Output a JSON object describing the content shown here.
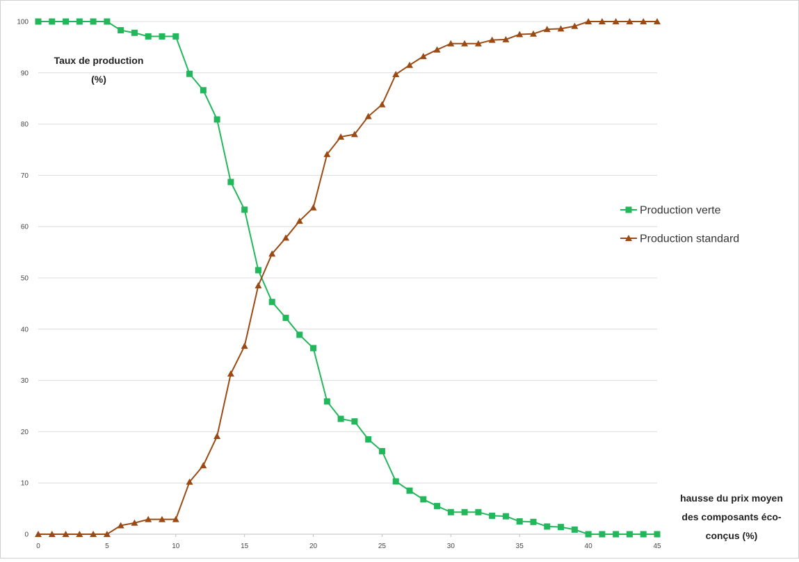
{
  "chart_data": {
    "type": "line",
    "ylabel_lines": [
      "Taux de production",
      "(%)"
    ],
    "xlabel_lines": [
      "hausse du prix moyen",
      "des composants éco-",
      "conçus  (%)"
    ],
    "xlim": [
      0,
      45
    ],
    "ylim": [
      0,
      100
    ],
    "x_ticks": [
      0,
      5,
      10,
      15,
      20,
      25,
      30,
      35,
      40,
      45
    ],
    "y_ticks": [
      0,
      10,
      20,
      30,
      40,
      50,
      60,
      70,
      80,
      90,
      100
    ],
    "grid": "horizontal",
    "legend_position": "right",
    "x": [
      0,
      1,
      2,
      3,
      4,
      5,
      6,
      7,
      8,
      9,
      10,
      11,
      12,
      13,
      14,
      15,
      16,
      17,
      18,
      19,
      20,
      21,
      22,
      23,
      24,
      25,
      26,
      27,
      28,
      29,
      30,
      31,
      32,
      33,
      34,
      35,
      36,
      37,
      38,
      39,
      40,
      41,
      42,
      43,
      44,
      45
    ],
    "series": [
      {
        "name": "Production verte",
        "color": "#22b75a",
        "marker": "square",
        "values": [
          100,
          100,
          100,
          100,
          100,
          100,
          98.3,
          97.8,
          97.1,
          97.1,
          97.1,
          89.8,
          86.6,
          80.9,
          68.7,
          63.3,
          51.5,
          45.3,
          42.2,
          38.9,
          36.3,
          25.9,
          22.5,
          22,
          18.5,
          16.2,
          10.3,
          8.5,
          6.8,
          5.5,
          4.3,
          4.3,
          4.3,
          3.6,
          3.5,
          2.5,
          2.4,
          1.5,
          1.4,
          0.9,
          0,
          0,
          0,
          0,
          0,
          0
        ]
      },
      {
        "name": "Production standard",
        "color": "#9b4a14",
        "marker": "triangle",
        "values": [
          0,
          0,
          0,
          0,
          0,
          0,
          1.7,
          2.2,
          2.9,
          2.9,
          2.9,
          10.2,
          13.4,
          19.1,
          31.3,
          36.7,
          48.5,
          54.7,
          57.8,
          61.1,
          63.7,
          74.1,
          77.5,
          78,
          81.5,
          83.8,
          89.7,
          91.5,
          93.2,
          94.5,
          95.7,
          95.7,
          95.7,
          96.4,
          96.5,
          97.5,
          97.6,
          98.5,
          98.6,
          99.1,
          100,
          100,
          100,
          100,
          100,
          100
        ]
      }
    ]
  }
}
